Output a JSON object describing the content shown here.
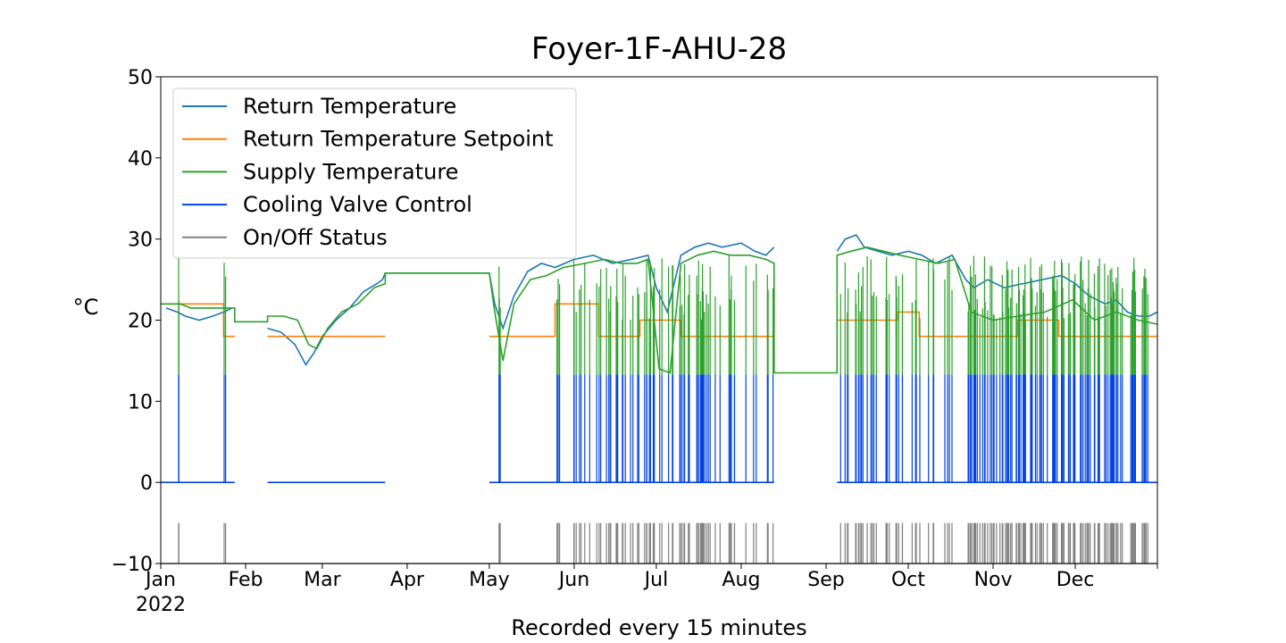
{
  "chart_data": {
    "type": "line",
    "title": "Foyer-1F-AHU-28",
    "xlabel": "Recorded every 15 minutes",
    "ylabel": "°C",
    "ylim": [
      -10,
      50
    ],
    "yticks": [
      -10,
      0,
      10,
      20,
      30,
      40,
      50
    ],
    "xlim": [
      "2022-01-01",
      "2022-12-31"
    ],
    "xticks": [
      {
        "label": "Jan",
        "date": "2022-01-01",
        "sublabel": "2022"
      },
      {
        "label": "Feb",
        "date": "2022-02-01"
      },
      {
        "label": "Mar",
        "date": "2022-03-01"
      },
      {
        "label": "Apr",
        "date": "2022-04-01"
      },
      {
        "label": "May",
        "date": "2022-05-01"
      },
      {
        "label": "Jun",
        "date": "2022-06-01"
      },
      {
        "label": "Jul",
        "date": "2022-07-01"
      },
      {
        "label": "Aug",
        "date": "2022-08-01"
      },
      {
        "label": "Sep",
        "date": "2022-09-01"
      },
      {
        "label": "Oct",
        "date": "2022-10-01"
      },
      {
        "label": "Nov",
        "date": "2022-11-01"
      },
      {
        "label": "Dec",
        "date": "2022-12-01"
      }
    ],
    "legend": {
      "placement": "upper-left"
    },
    "grid": false,
    "series": [
      {
        "name": "Return Temperature",
        "color": "#1f77b4",
        "x": [
          "2022-01-03",
          "2022-01-07",
          "2022-01-10",
          "2022-01-15",
          "2022-01-20",
          "2022-01-24",
          "2022-01-27",
          null,
          "2022-02-09",
          "2022-02-14",
          "2022-02-19",
          "2022-02-23",
          "2022-02-26",
          "2022-03-01",
          "2022-03-06",
          "2022-03-11",
          "2022-03-16",
          "2022-03-21",
          "2022-03-23",
          "2022-03-24",
          "2022-05-01",
          "2022-05-03",
          "2022-05-06",
          "2022-05-10",
          "2022-05-15",
          "2022-05-20",
          "2022-05-25",
          "2022-06-01",
          "2022-06-08",
          "2022-06-15",
          "2022-06-22",
          "2022-06-28",
          "2022-07-01",
          "2022-07-05",
          "2022-07-10",
          "2022-07-15",
          "2022-07-20",
          "2022-07-25",
          "2022-08-01",
          "2022-08-06",
          "2022-08-10",
          "2022-08-13",
          null,
          "2022-09-05",
          "2022-09-08",
          "2022-09-12",
          "2022-09-15",
          "2022-09-20",
          "2022-09-25",
          "2022-10-01",
          "2022-10-06",
          "2022-10-11",
          "2022-10-17",
          "2022-10-22",
          "2022-10-25",
          "2022-10-30",
          "2022-11-05",
          "2022-11-12",
          "2022-11-19",
          "2022-11-26",
          "2022-12-01",
          "2022-12-06",
          "2022-12-12",
          "2022-12-16",
          "2022-12-20",
          "2022-12-24",
          "2022-12-28",
          "2022-12-31"
        ],
        "y": [
          21.5,
          21,
          20.5,
          20,
          20.5,
          21,
          21.5,
          null,
          19,
          18.5,
          17,
          14.5,
          16,
          18,
          20,
          21.5,
          23.5,
          24.5,
          25,
          25.8,
          25.8,
          22,
          19,
          23,
          26,
          27,
          26.5,
          27.5,
          28,
          27,
          27.5,
          28,
          24,
          21,
          28,
          29,
          29.5,
          29,
          29.5,
          28.5,
          28,
          29,
          null,
          28.5,
          30,
          30.5,
          29,
          28.5,
          28,
          28.5,
          28,
          27,
          28,
          25,
          24,
          25,
          24,
          24.5,
          25,
          25.5,
          24.5,
          23,
          22,
          22.5,
          21,
          20.5,
          20.5,
          21
        ]
      },
      {
        "name": "Return Temperature Setpoint",
        "color": "#ff7f0e",
        "x": [
          "2022-01-01",
          "2022-01-24",
          "2022-01-24",
          "2022-01-28",
          null,
          "2022-02-09",
          "2022-03-24",
          null,
          "2022-05-01",
          "2022-05-25",
          "2022-05-25",
          "2022-06-10",
          "2022-06-10",
          "2022-06-25",
          "2022-06-25",
          "2022-07-10",
          "2022-07-10",
          "2022-08-13",
          null,
          "2022-09-05",
          "2022-09-27",
          "2022-09-27",
          "2022-10-05",
          "2022-10-05",
          "2022-11-10",
          "2022-11-10",
          "2022-11-25",
          "2022-11-25",
          "2022-12-31"
        ],
        "y": [
          22,
          22,
          18,
          18,
          null,
          18,
          18,
          null,
          18,
          18,
          22,
          22,
          18,
          18,
          20,
          20,
          18,
          18,
          null,
          20,
          20,
          21,
          21,
          18,
          18,
          20,
          20,
          18,
          18
        ]
      },
      {
        "name": "Supply Temperature",
        "color": "#2ca02c",
        "x": [
          "2022-01-01",
          "2022-01-05",
          "2022-01-08",
          "2022-01-12",
          "2022-01-18",
          "2022-01-24",
          "2022-01-28",
          "2022-01-28",
          "2022-02-09",
          "2022-02-09",
          "2022-02-15",
          "2022-02-20",
          "2022-02-24",
          "2022-02-27",
          "2022-03-03",
          "2022-03-08",
          "2022-03-14",
          "2022-03-20",
          "2022-03-24",
          "2022-03-24",
          "2022-05-01",
          "2022-05-03",
          "2022-05-06",
          "2022-05-10",
          "2022-05-16",
          "2022-05-22",
          "2022-05-28",
          "2022-06-05",
          "2022-06-12",
          "2022-06-18",
          "2022-06-24",
          "2022-06-28",
          "2022-07-02",
          "2022-07-06",
          "2022-07-10",
          "2022-07-16",
          "2022-07-22",
          "2022-07-28",
          "2022-08-04",
          "2022-08-10",
          "2022-08-13",
          "2022-08-13",
          "2022-09-05",
          "2022-09-05",
          "2022-09-10",
          "2022-09-16",
          "2022-09-22",
          "2022-09-28",
          "2022-10-05",
          "2022-10-12",
          "2022-10-18",
          "2022-10-24",
          "2022-11-01",
          "2022-11-10",
          "2022-11-20",
          "2022-11-30",
          "2022-12-08",
          "2022-12-16",
          "2022-12-24",
          "2022-12-31"
        ],
        "y": [
          22,
          22,
          22,
          21.5,
          21.5,
          21.5,
          21.5,
          19.8,
          19.8,
          20.5,
          20.5,
          20,
          17,
          16.5,
          19,
          21,
          22,
          24,
          24.5,
          25.8,
          25.8,
          21,
          15,
          22,
          25,
          25.5,
          26.5,
          27,
          27.5,
          27,
          27,
          27.5,
          14,
          13.5,
          27,
          28,
          28.5,
          28,
          28,
          27.5,
          27,
          13.5,
          13.5,
          28,
          28.5,
          29,
          28.5,
          28,
          27.5,
          27,
          27.5,
          21,
          20,
          20.5,
          21,
          22.5,
          20,
          21,
          20,
          19.5
        ]
      },
      {
        "name": "Cooling Valve Control",
        "color": "#0343df",
        "x": [
          "2022-01-01",
          "2022-01-28",
          null,
          "2022-02-09",
          "2022-03-24",
          null,
          "2022-05-01",
          "2022-08-13",
          null,
          "2022-09-05",
          "2022-12-31"
        ],
        "y": [
          0,
          0,
          null,
          0,
          0,
          null,
          0,
          0,
          null,
          0,
          0
        ]
      },
      {
        "name": "On/Off Status",
        "color": "#808080",
        "x": [
          "2022-01-01",
          "2022-12-31"
        ],
        "y": [
          -10,
          -10
        ]
      }
    ]
  }
}
